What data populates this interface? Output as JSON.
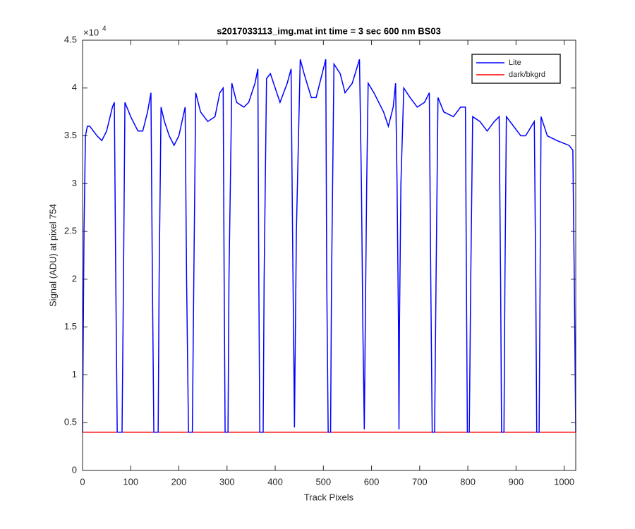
{
  "chart_data": {
    "type": "line",
    "title": "s2017033113_img.mat int time = 3 sec  600 nm BS03",
    "xlabel": "Track Pixels",
    "ylabel": "Signal (ADU) at pixel 754",
    "y_exponent": {
      "base": "×10",
      "power": "4"
    },
    "xlim": [
      0,
      1024
    ],
    "ylim": [
      0,
      4.5
    ],
    "xticks": [
      0,
      100,
      200,
      300,
      400,
      500,
      600,
      700,
      800,
      900,
      1000
    ],
    "yticks": [
      0,
      0.5,
      1,
      1.5,
      2,
      2.5,
      3,
      3.5,
      4,
      4.5
    ],
    "grid": false,
    "legend_position": "northeast",
    "series": [
      {
        "name": "Lite",
        "color": "#0000ff",
        "x": [
          0,
          3,
          6,
          10,
          15,
          30,
          40,
          50,
          62,
          66,
          69,
          72,
          82,
          85,
          88,
          100,
          115,
          125,
          135,
          142,
          145,
          148,
          157,
          159,
          163,
          170,
          180,
          190,
          200,
          213,
          216,
          220,
          228,
          231,
          235,
          245,
          260,
          275,
          285,
          292,
          294,
          296,
          302,
          304,
          310,
          320,
          335,
          345,
          358,
          364,
          366,
          368,
          375,
          377,
          382,
          390,
          410,
          425,
          433,
          436,
          439,
          440,
          441,
          444,
          452,
          460,
          475,
          485,
          495,
          505,
          507,
          510,
          515,
          517,
          522,
          535,
          545,
          560,
          575,
          579,
          582,
          585,
          587,
          590,
          593,
          605,
          625,
          635,
          645,
          650,
          653,
          656,
          657,
          658,
          661,
          667,
          680,
          695,
          710,
          720,
          723,
          726,
          731,
          734,
          738,
          750,
          770,
          785,
          795,
          797,
          799,
          803,
          806,
          810,
          825,
          840,
          855,
          865,
          868,
          870,
          875,
          877,
          880,
          895,
          910,
          920,
          938,
          941,
          943,
          948,
          950,
          952,
          965,
          985,
          1010,
          1018,
          1021,
          1024
        ],
        "values": [
          0.4,
          2.5,
          3.5,
          3.6,
          3.6,
          3.5,
          3.45,
          3.55,
          3.8,
          3.85,
          2.0,
          0.4,
          0.4,
          2.0,
          3.85,
          3.7,
          3.55,
          3.55,
          3.75,
          3.95,
          2.0,
          0.4,
          0.4,
          2.0,
          3.8,
          3.65,
          3.5,
          3.4,
          3.5,
          3.8,
          2.0,
          0.4,
          0.4,
          2.0,
          3.95,
          3.75,
          3.65,
          3.7,
          3.95,
          4.0,
          2.0,
          0.4,
          0.4,
          2.0,
          4.05,
          3.85,
          3.8,
          3.85,
          4.05,
          4.2,
          2.0,
          0.4,
          0.4,
          2.0,
          4.1,
          4.15,
          3.85,
          4.05,
          4.2,
          2.5,
          1.0,
          0.45,
          1.0,
          2.5,
          4.3,
          4.15,
          3.9,
          3.9,
          4.1,
          4.3,
          2.0,
          0.4,
          0.4,
          2.0,
          4.25,
          4.15,
          3.95,
          4.05,
          4.3,
          3.0,
          1.5,
          0.43,
          1.5,
          3.0,
          4.05,
          3.95,
          3.75,
          3.6,
          3.8,
          4.05,
          3.0,
          1.5,
          0.43,
          1.5,
          3.0,
          4.0,
          3.9,
          3.8,
          3.85,
          3.95,
          2.0,
          0.4,
          0.4,
          2.0,
          3.9,
          3.75,
          3.7,
          3.8,
          3.8,
          2.0,
          0.4,
          0.4,
          2.0,
          3.7,
          3.65,
          3.55,
          3.65,
          3.7,
          2.0,
          0.4,
          0.4,
          2.0,
          3.7,
          3.6,
          3.5,
          3.5,
          3.65,
          2.0,
          0.4,
          0.4,
          2.0,
          3.7,
          3.5,
          3.45,
          3.4,
          3.35,
          2.0,
          0.4
        ]
      },
      {
        "name": "dark/bkgrd",
        "color": "#ff0000",
        "x": [
          0,
          1024
        ],
        "values": [
          0.4,
          0.4
        ]
      }
    ]
  }
}
